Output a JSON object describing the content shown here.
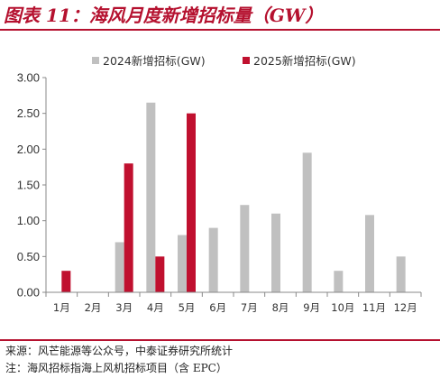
{
  "figure": {
    "title": "图表 11：海风月度新增招标量（GW）",
    "source": "来源：风芒能源等公众号，中泰证券研究所统计",
    "note": "注：海风招标指海上风机招标项目（含 EPC）"
  },
  "colors": {
    "accent": "#b5112f",
    "series_2024": "#c0c0c0",
    "series_2025": "#c0102f"
  },
  "chart_data": {
    "type": "bar",
    "categories": [
      "1月",
      "2月",
      "3月",
      "4月",
      "5月",
      "6月",
      "7月",
      "8月",
      "9月",
      "10月",
      "11月",
      "12月"
    ],
    "series": [
      {
        "name": "2024新增招标(GW)",
        "values": [
          0,
          0,
          0.7,
          2.65,
          0.8,
          0.9,
          1.22,
          1.1,
          1.95,
          0.3,
          1.08,
          0.5
        ]
      },
      {
        "name": "2025新增招标(GW)",
        "values": [
          0.3,
          0,
          1.8,
          0.5,
          2.5,
          null,
          null,
          null,
          null,
          null,
          null,
          null
        ]
      }
    ],
    "yticks": [
      "0.00",
      "0.50",
      "1.00",
      "1.50",
      "2.00",
      "2.50",
      "3.00"
    ],
    "ylim": [
      0,
      3.0
    ],
    "legend_position": "top",
    "grid": false
  }
}
